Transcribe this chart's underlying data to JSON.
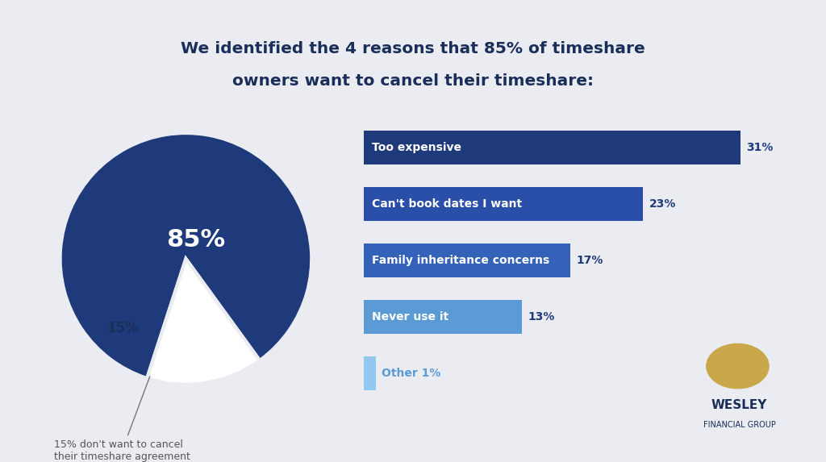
{
  "title_line1": "We identified the 4 reasons that 85% of timeshare",
  "title_line2": "owners want to cancel their timeshare:",
  "title_color": "#1a2e5a",
  "background_color": "#eaecf1",
  "pie_values": [
    85,
    15
  ],
  "pie_dark_color": "#1e3a7a",
  "pie_light_color": "#ffffff",
  "pie_85_label": "85%",
  "pie_15_label": "15%",
  "pie_annotation": "15% don't want to cancel\ntheir timeshare agreement",
  "bar_labels": [
    "Too expensive",
    "Can't book dates I want",
    "Family inheritance concerns",
    "Never use it",
    "Other 1%"
  ],
  "bar_values": [
    31,
    23,
    17,
    13,
    1
  ],
  "bar_colors": [
    "#1e3a7a",
    "#2a4fa8",
    "#3362b8",
    "#5b9bd5",
    "#90c8ef"
  ],
  "bar_text_colors": [
    "white",
    "white",
    "white",
    "white",
    "#5b9bd5"
  ],
  "pct_text_colors": [
    "#1e3a7a",
    "#1e3a7a",
    "#1e3a7a",
    "#1e3a7a",
    "#5b9bd5"
  ],
  "annotation_color": "#555555",
  "wesley_color": "#1a2e5a",
  "lion_color": "#c9a84c"
}
